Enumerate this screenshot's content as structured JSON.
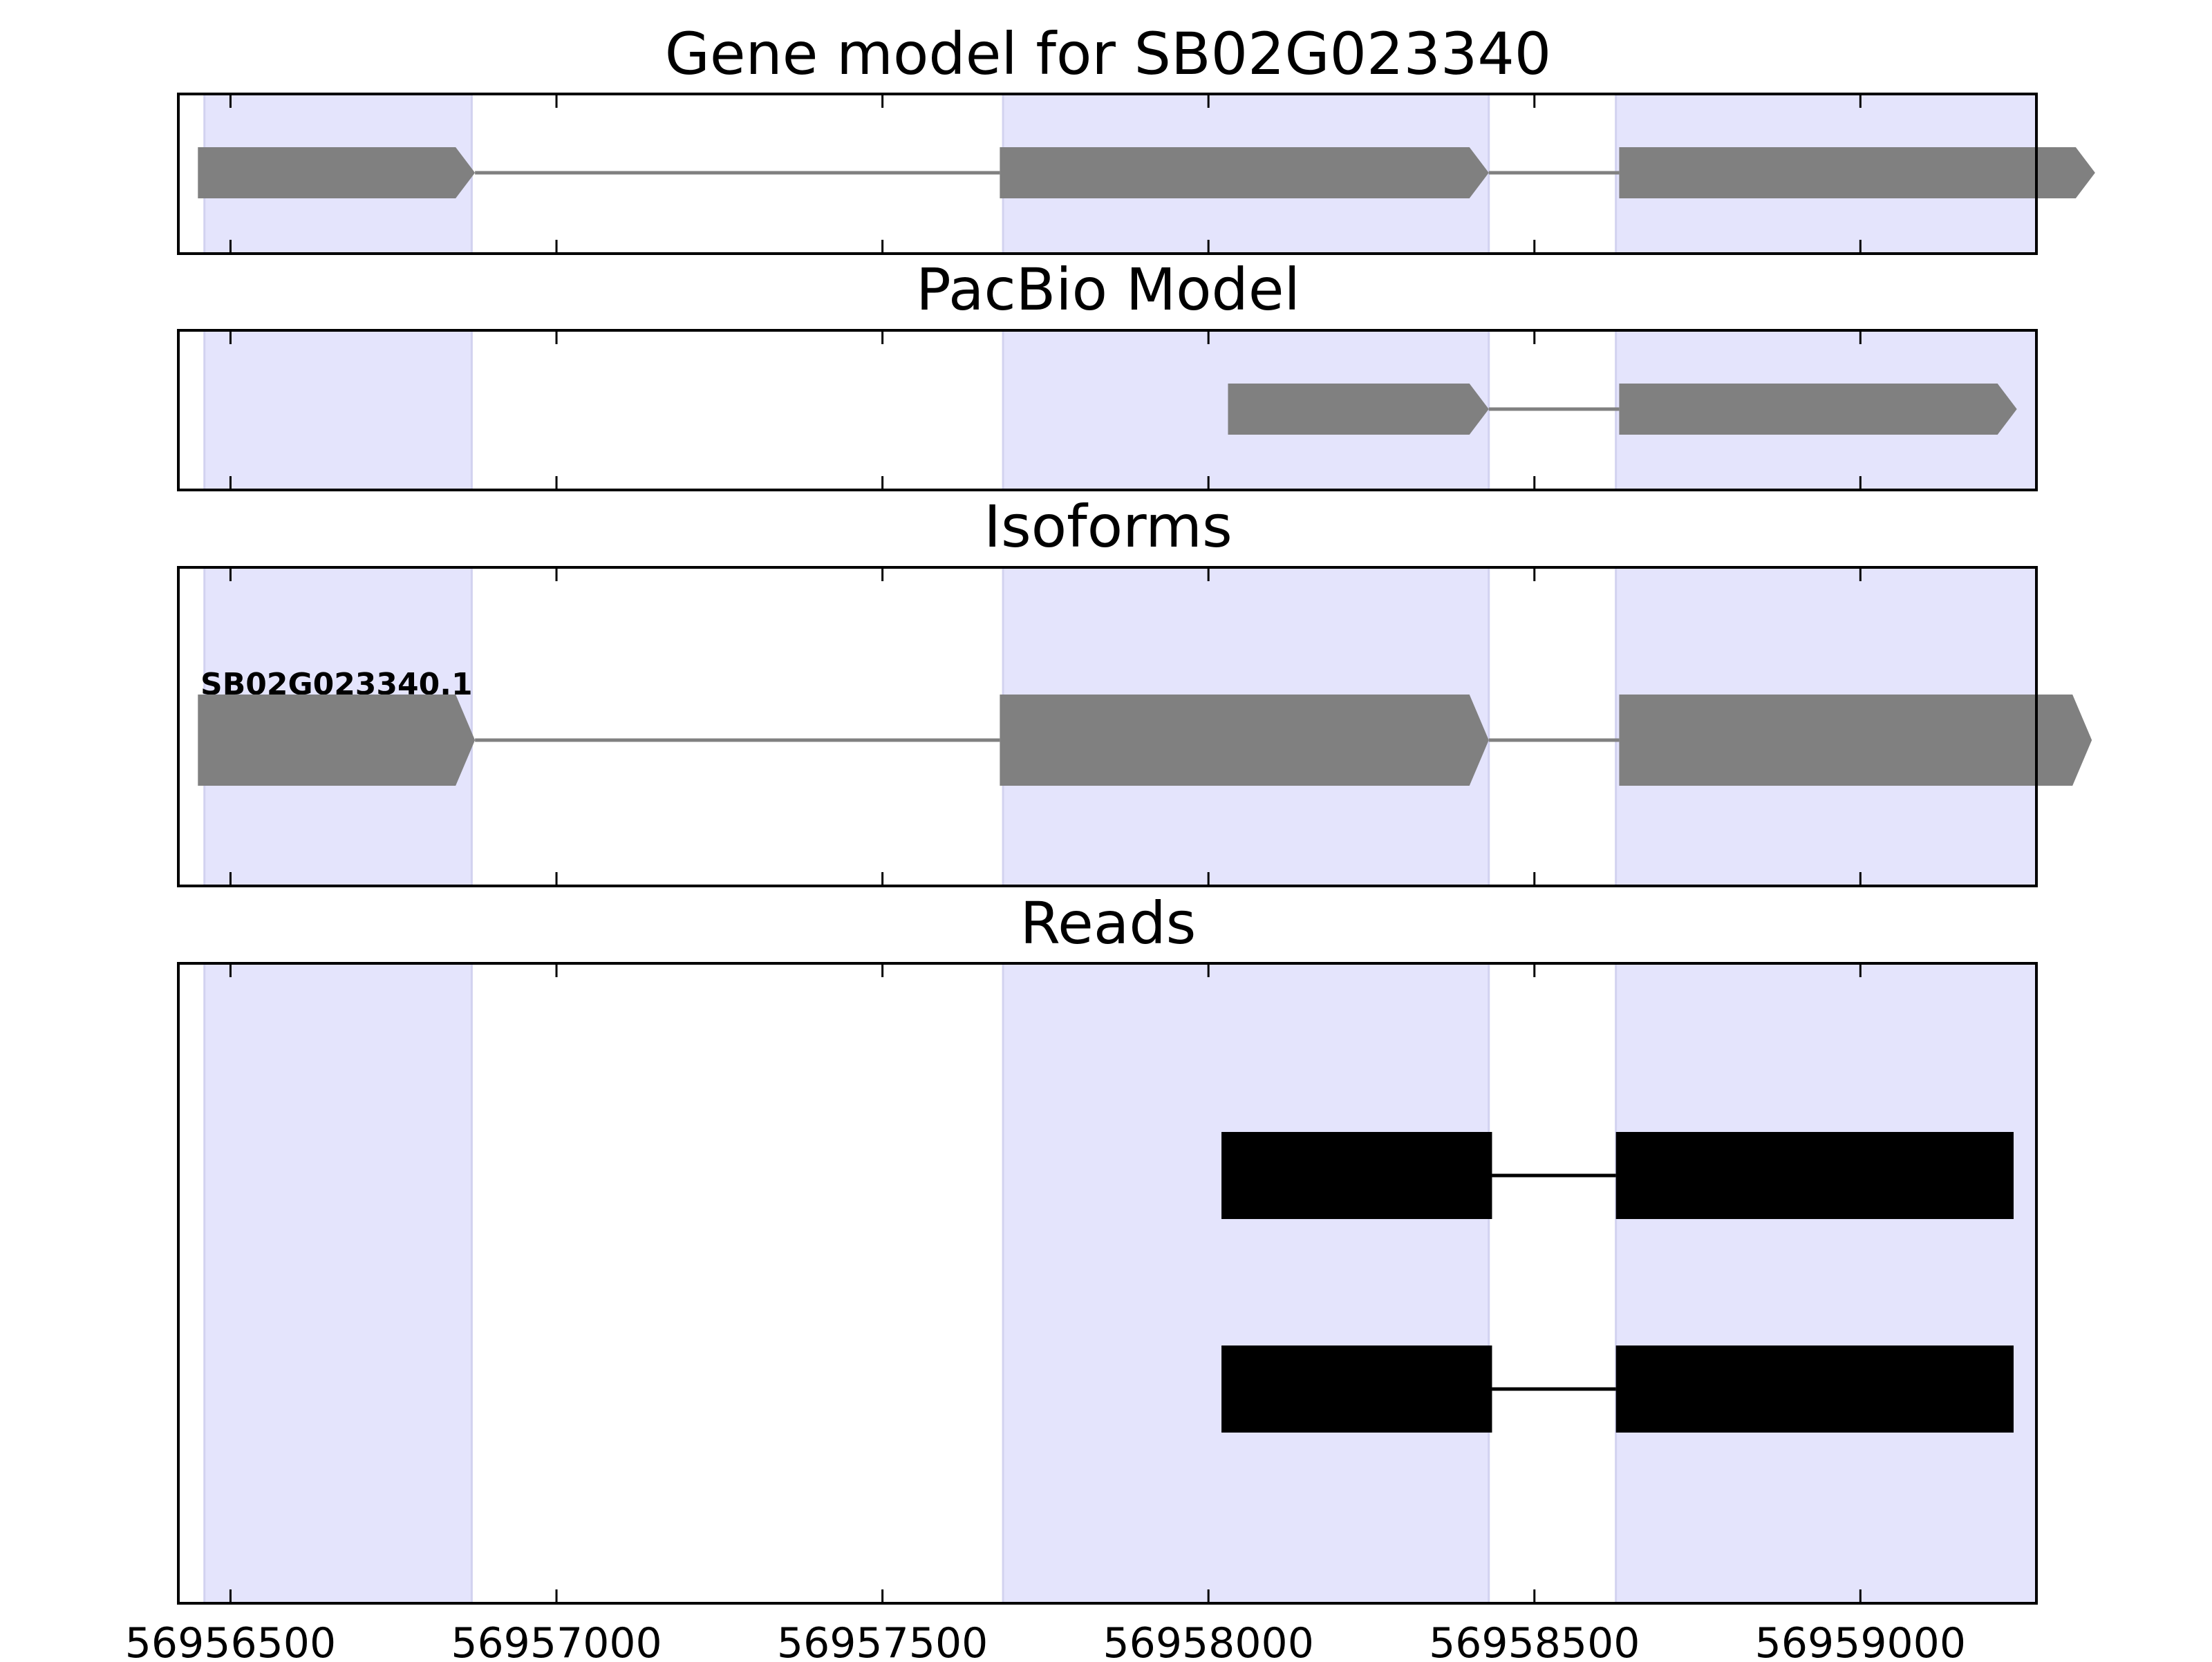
{
  "chart_data": {
    "type": "gene-track",
    "x_axis": {
      "range": [
        56956420,
        56959270
      ],
      "ticks": [
        56956500,
        56957000,
        56957500,
        56958000,
        56958500,
        56959000
      ],
      "tick_labels": [
        "56956500",
        "56957000",
        "56957500",
        "56958000",
        "56958500",
        "56959000"
      ]
    },
    "exon_highlights": [
      [
        56956460,
        56956870
      ],
      [
        56957685,
        56958430
      ],
      [
        56958625,
        56959350
      ]
    ],
    "colors": {
      "highlight": "#e4e4fc",
      "model": "#808080",
      "read": "#000000",
      "frame": "#000000"
    },
    "panels": [
      {
        "title": "Gene model for SB02G023340",
        "rows": [
          {
            "exons": [
              [
                56956450,
                56956875
              ],
              [
                56957680,
                56958430
              ],
              [
                56958630,
                56959360
              ]
            ],
            "label": ""
          }
        ]
      },
      {
        "title": "PacBio Model",
        "rows": [
          {
            "exons": [
              [
                56958030,
                56958430
              ],
              [
                56958630,
                56959240
              ]
            ],
            "label": ""
          }
        ]
      },
      {
        "title": "Isoforms",
        "rows": [
          {
            "exons": [
              [
                56956450,
                56956875
              ],
              [
                56957680,
                56958430
              ],
              [
                56958630,
                56959355
              ]
            ],
            "label": "SB02G023340.1"
          }
        ]
      },
      {
        "title": "Reads",
        "rows": [
          {
            "exons": [
              [
                56958020,
                56958435
              ],
              [
                56958625,
                56959235
              ]
            ],
            "label": ""
          },
          {
            "exons": [
              [
                56958020,
                56958435
              ],
              [
                56958625,
                56959235
              ]
            ],
            "label": ""
          }
        ]
      }
    ]
  }
}
